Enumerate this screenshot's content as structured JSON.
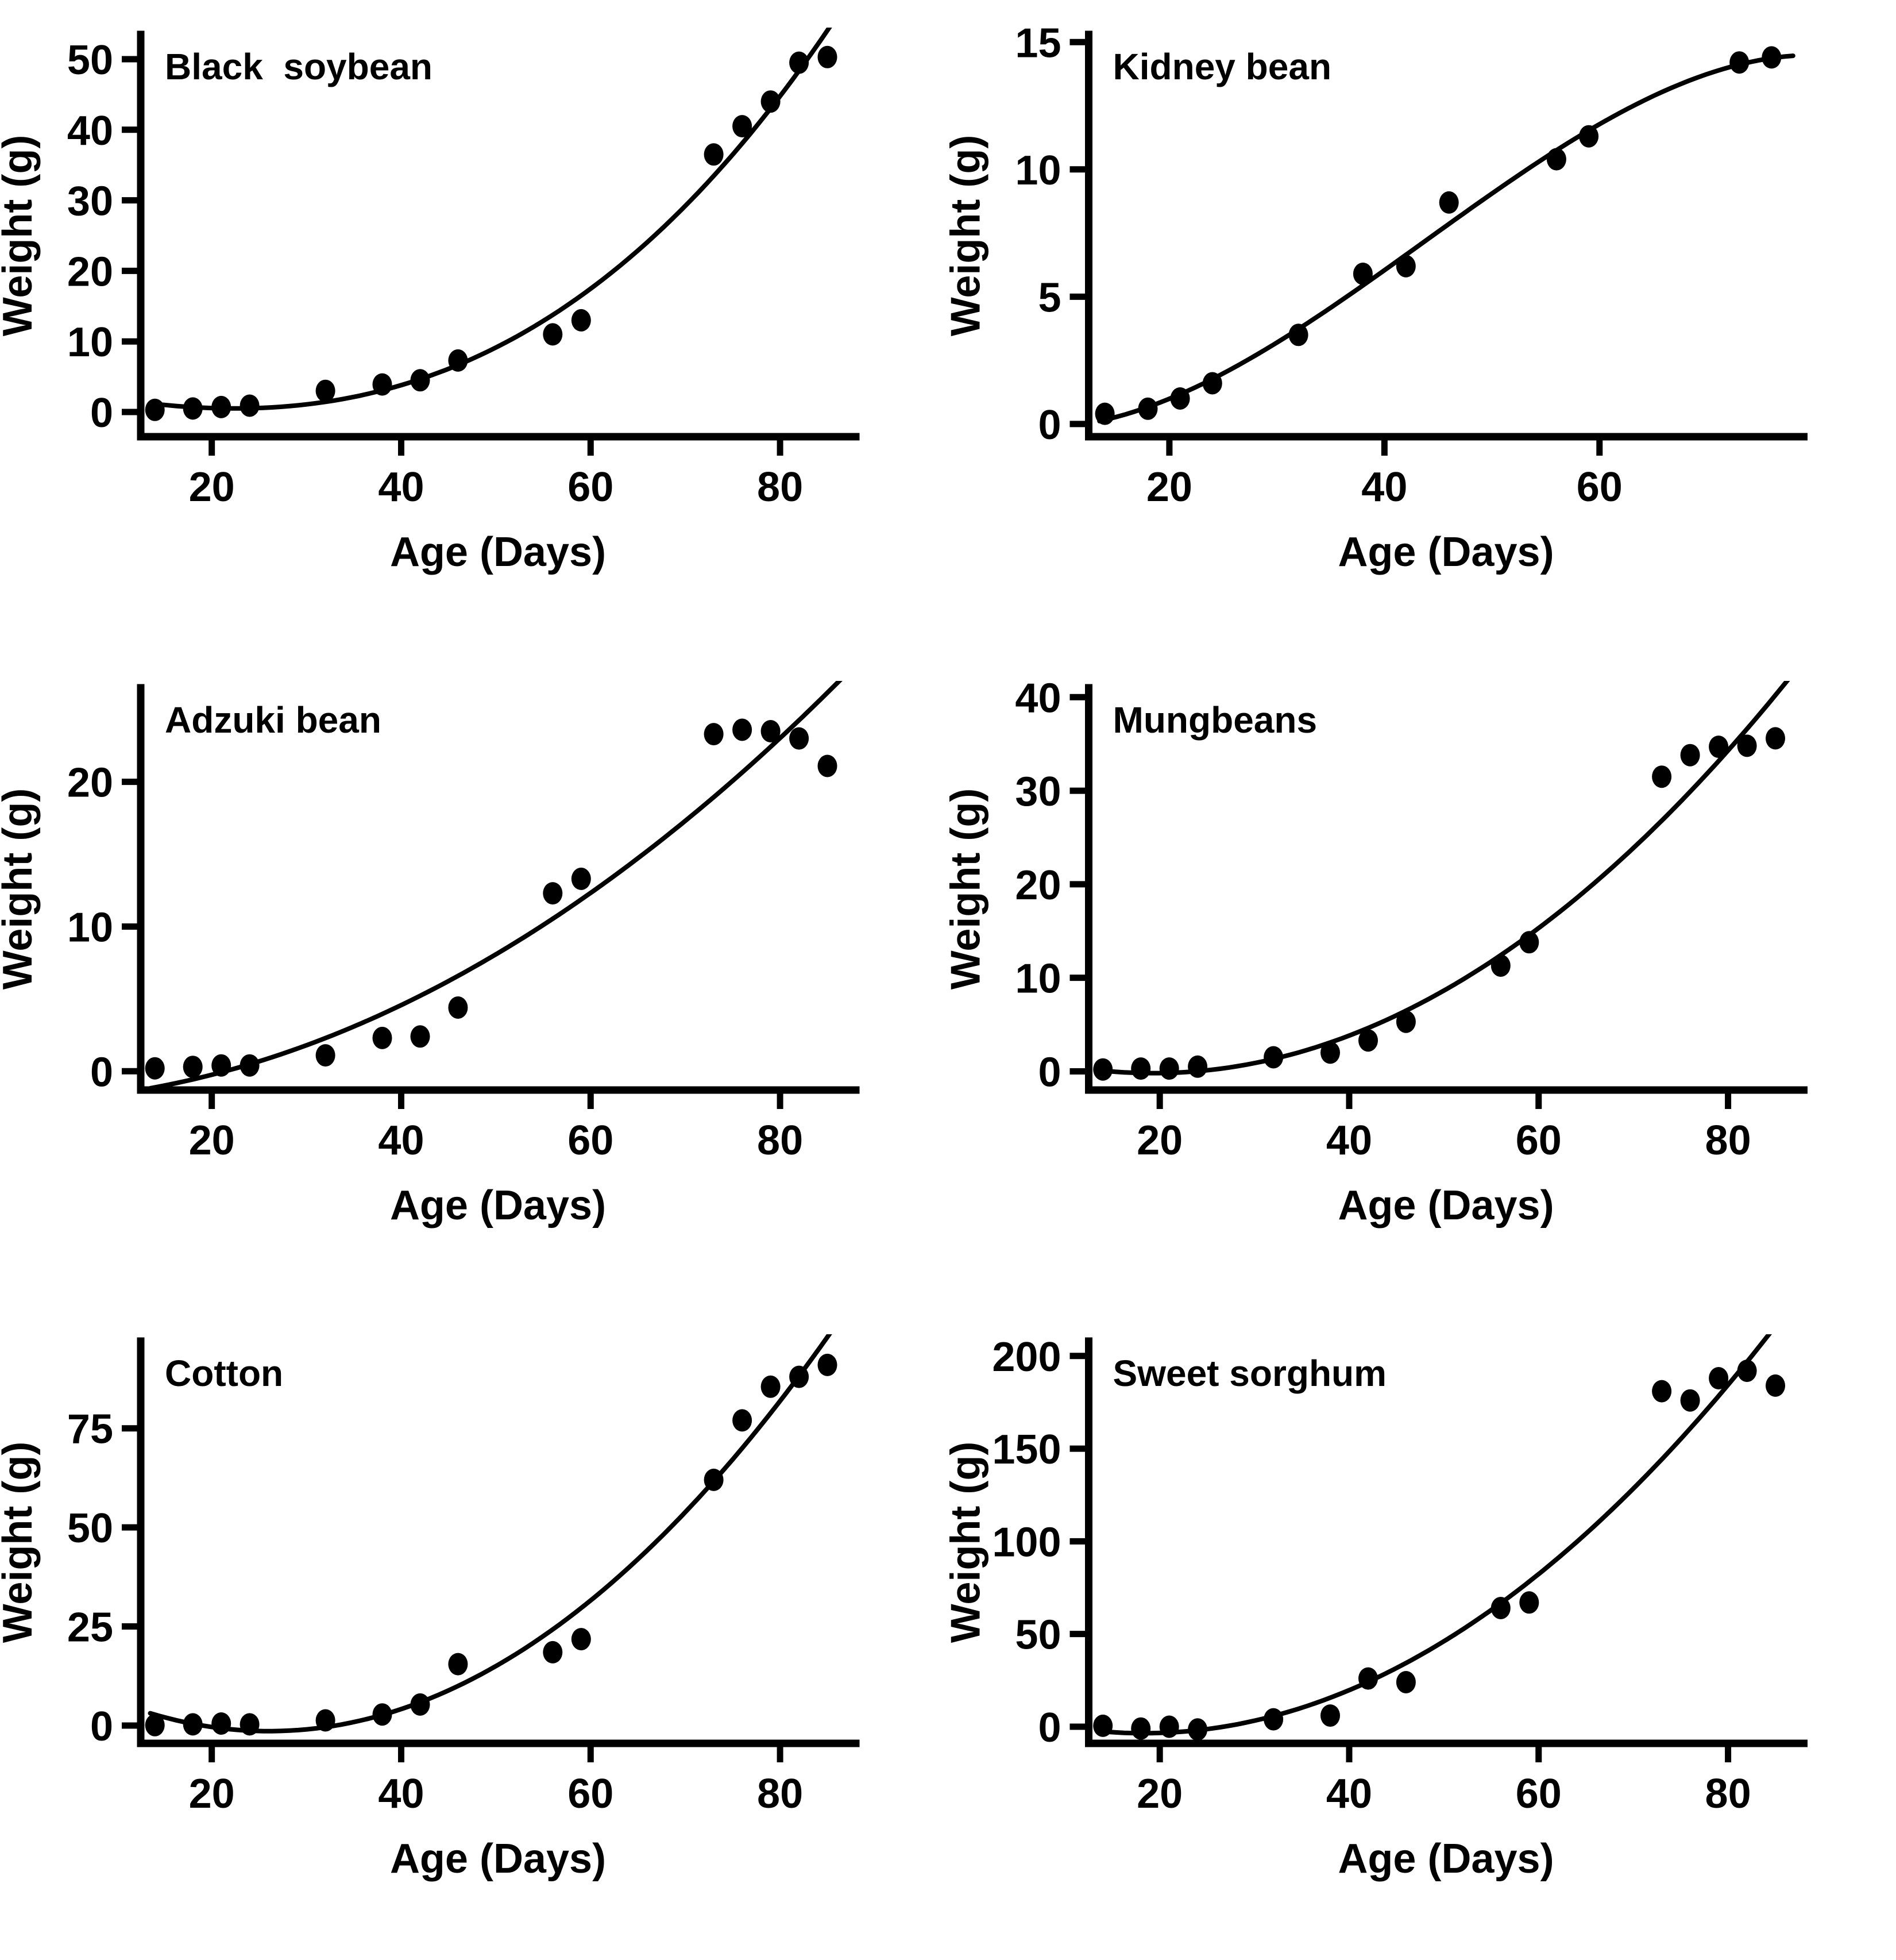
{
  "figure": {
    "background": "#ffffff",
    "ink": "#000000"
  },
  "chart_data": [
    {
      "type": "scatter",
      "title": "Black  soybean",
      "xlabel": "Age (Days)",
      "ylabel": "Weight (g)",
      "x": [
        14,
        18,
        21,
        24,
        32,
        38,
        42,
        46,
        56,
        59,
        73,
        76,
        79,
        82,
        85
      ],
      "y": [
        0.3,
        0.5,
        0.7,
        0.9,
        3.0,
        3.9,
        4.5,
        7.3,
        11.0,
        13.0,
        36.5,
        40.5,
        44.0,
        49.5,
        50.3
      ],
      "xlim": [
        12.5,
        88
      ],
      "ylim": [
        -3.5,
        53.5
      ],
      "xticks": [
        20,
        40,
        60,
        80
      ],
      "yticks": [
        0,
        10,
        20,
        30,
        40,
        50
      ],
      "grid": "off",
      "fit": {
        "type": "polynomial",
        "degree": 3
      }
    },
    {
      "type": "scatter",
      "title": "Kidney bean",
      "xlabel": "Age (Days)",
      "ylabel": "Weight (g)",
      "x": [
        14,
        18,
        21,
        24,
        32,
        38,
        42,
        46,
        56,
        59,
        73,
        76
      ],
      "y": [
        0.4,
        0.6,
        1.0,
        1.6,
        3.5,
        5.9,
        6.2,
        8.7,
        10.4,
        11.3,
        14.2,
        14.4
      ],
      "xlim": [
        12.5,
        79
      ],
      "ylim": [
        -0.5,
        15.3
      ],
      "xticks": [
        20,
        40,
        60
      ],
      "yticks": [
        0,
        5,
        10,
        15
      ],
      "grid": "off",
      "fit": {
        "type": "polynomial",
        "degree": 3
      }
    },
    {
      "type": "scatter",
      "title": "Adzuki bean",
      "xlabel": "Age (Days)",
      "ylabel": "Weight (g)",
      "x": [
        14,
        18,
        21,
        24,
        32,
        38,
        42,
        46,
        56,
        59,
        73,
        76,
        79,
        82,
        85
      ],
      "y": [
        0.2,
        0.3,
        0.4,
        0.4,
        1.1,
        2.3,
        2.4,
        4.4,
        12.3,
        13.3,
        23.3,
        23.6,
        23.5,
        23.0,
        21.1
      ],
      "xlim": [
        12.5,
        88
      ],
      "ylim": [
        -1.3,
        26.5
      ],
      "xticks": [
        20,
        40,
        60,
        80
      ],
      "yticks": [
        0,
        10,
        20
      ],
      "grid": "off",
      "fit": {
        "type": "polynomial",
        "degree": 2
      }
    },
    {
      "type": "scatter",
      "title": "Mungbeans",
      "xlabel": "Age (Days)",
      "ylabel": "Weight (g)",
      "x": [
        14,
        18,
        21,
        24,
        32,
        38,
        42,
        46,
        56,
        59,
        73,
        76,
        79,
        82,
        85
      ],
      "y": [
        0.2,
        0.3,
        0.3,
        0.5,
        1.5,
        2.0,
        3.3,
        5.3,
        11.3,
        13.8,
        31.5,
        33.8,
        34.7,
        34.8,
        35.6
      ],
      "xlim": [
        12.5,
        88
      ],
      "ylim": [
        -2,
        41
      ],
      "xticks": [
        20,
        40,
        60,
        80
      ],
      "yticks": [
        0,
        10,
        20,
        30,
        40
      ],
      "grid": "off",
      "fit": {
        "type": "polynomial",
        "degree": 2
      }
    },
    {
      "type": "scatter",
      "title": "Cotton",
      "xlabel": "Age (Days)",
      "ylabel": "Weight (g)",
      "x": [
        14,
        18,
        21,
        24,
        32,
        38,
        42,
        46,
        56,
        59,
        73,
        76,
        79,
        82,
        85
      ],
      "y": [
        0.1,
        0.3,
        0.5,
        0.3,
        1.3,
        2.8,
        5.3,
        15.5,
        18.5,
        21.8,
        62.0,
        77.0,
        85.5,
        88.0,
        91.0
      ],
      "xlim": [
        12.5,
        88
      ],
      "ylim": [
        -4.5,
        97
      ],
      "xticks": [
        20,
        40,
        60,
        80
      ],
      "yticks": [
        0,
        25,
        50,
        75
      ],
      "grid": "off",
      "fit": {
        "type": "polynomial",
        "degree": 2
      }
    },
    {
      "type": "scatter",
      "title": "Sweet sorghum",
      "xlabel": "Age (Days)",
      "ylabel": "Weight (g)",
      "x": [
        14,
        18,
        21,
        24,
        32,
        38,
        42,
        46,
        56,
        59,
        73,
        76,
        79,
        82,
        85
      ],
      "y": [
        0.5,
        -1.0,
        0.0,
        -1.5,
        4.0,
        6.0,
        26.0,
        24.0,
        64.0,
        67.0,
        181.0,
        176.0,
        188.0,
        192.0,
        184.0
      ],
      "xlim": [
        12.5,
        88
      ],
      "ylim": [
        -9,
        208
      ],
      "xticks": [
        20,
        40,
        60,
        80
      ],
      "yticks": [
        0,
        50,
        100,
        150,
        200
      ],
      "grid": "off",
      "fit": {
        "type": "polynomial",
        "degree": 2
      }
    }
  ]
}
